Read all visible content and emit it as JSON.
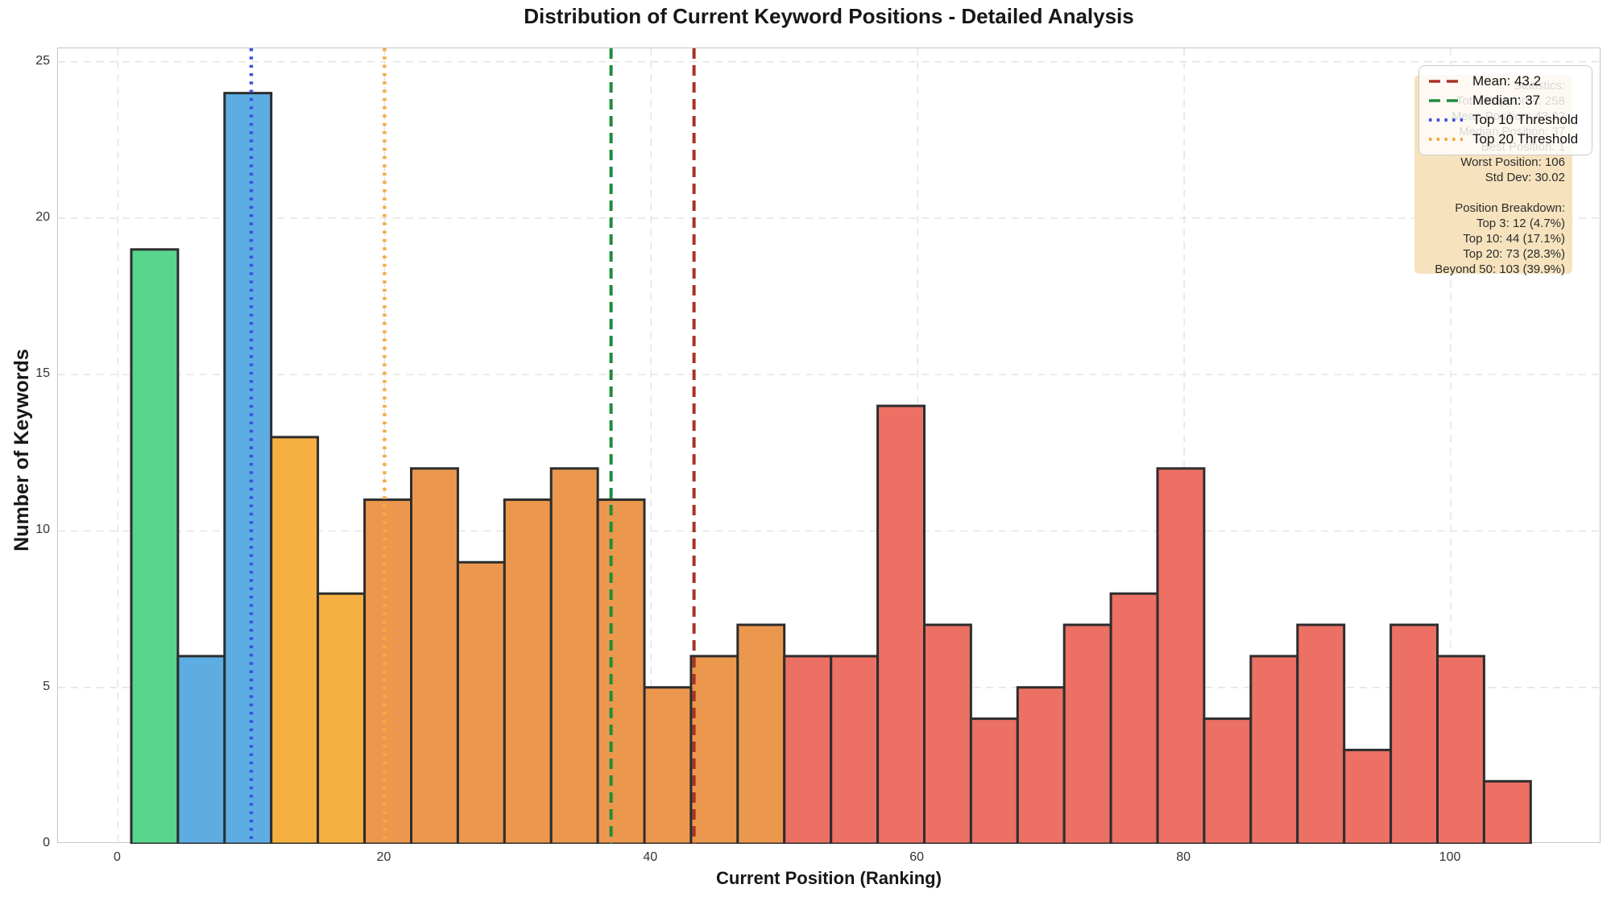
{
  "chart_data": {
    "type": "bar",
    "subtype": "histogram",
    "title": "Distribution of Current Keyword Positions - Detailed Analysis",
    "xlabel": "Current Position (Ranking)",
    "ylabel": "Number of Keywords",
    "x_ticks": [
      0,
      20,
      40,
      60,
      80,
      100
    ],
    "y_ticks": [
      0,
      5,
      10,
      15,
      20,
      25
    ],
    "xlim": [
      -4.5,
      111.3
    ],
    "ylim": [
      0,
      25.43
    ],
    "grid": true,
    "grid_style": "dashed",
    "bin_width": 3.5,
    "bin_edges": [
      1,
      4.5,
      8,
      11.5,
      15,
      18.5,
      22,
      25.5,
      29,
      32.5,
      36,
      39.5,
      43,
      46.5,
      50,
      53.5,
      57,
      60.5,
      64,
      67.5,
      71,
      74.5,
      78,
      81.5,
      85,
      88.5,
      92,
      95.5,
      99,
      102.5,
      106
    ],
    "counts": [
      19,
      6,
      24,
      13,
      8,
      11,
      12,
      9,
      11,
      12,
      11,
      5,
      6,
      7,
      6,
      6,
      14,
      7,
      4,
      5,
      7,
      8,
      12,
      4,
      6,
      7,
      3,
      7,
      6,
      2
    ],
    "bin_groups": [
      "top3",
      "top10",
      "top10",
      "top20",
      "top20",
      "top50",
      "top50",
      "top50",
      "top50",
      "top50",
      "top50",
      "top50",
      "top50",
      "top50",
      "beyond50",
      "beyond50",
      "beyond50",
      "beyond50",
      "beyond50",
      "beyond50",
      "beyond50",
      "beyond50",
      "beyond50",
      "beyond50",
      "beyond50",
      "beyond50",
      "beyond50",
      "beyond50",
      "beyond50",
      "beyond50"
    ],
    "palette": {
      "top3": "#58d68d",
      "top10": "#5dade2",
      "top20": "#f5b041",
      "top50": "#eb984e",
      "beyond50": "#ec7063",
      "bar_edge": "#2d2d2d",
      "gridline": "#e2e2e2"
    },
    "vlines": [
      {
        "name": "mean-line",
        "label": "Mean: 43.2",
        "x": 43.22,
        "color": "#a93226",
        "style": "dashed"
      },
      {
        "name": "median-line",
        "label": "Median: 37",
        "x": 37,
        "color": "#1e8c3c",
        "style": "dashed"
      },
      {
        "name": "top10-threshold-line",
        "label": "Top 10 Threshold",
        "x": 10,
        "color": "#3d52e1",
        "style": "dotted"
      },
      {
        "name": "top20-threshold-line",
        "label": "Top 20 Threshold",
        "x": 20,
        "color": "#f5ab3d",
        "style": "dotted"
      }
    ],
    "legend_position": "upper right"
  },
  "stats_box": {
    "lines": [
      "Statistics:",
      "Total Keywords: 258",
      "Mean Position: 43.22",
      "Median Position: 37",
      "Best Position: 1",
      "Worst Position: 106",
      "Std Dev: 30.02",
      "",
      "Position Breakdown:",
      "Top 3: 12 (4.7%)",
      "Top 10: 44 (17.1%)",
      "Top 20: 73 (28.3%)",
      "Beyond 50: 103 (39.9%)"
    ]
  }
}
